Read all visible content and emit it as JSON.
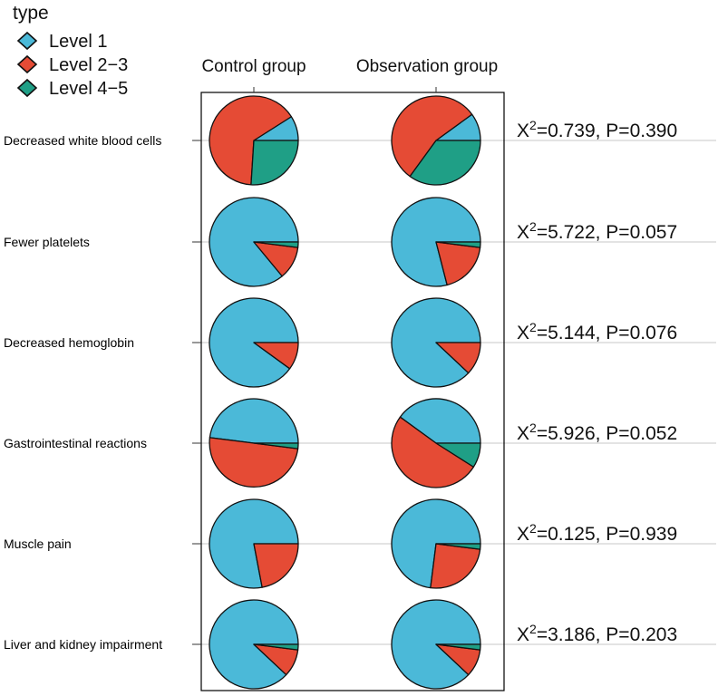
{
  "chart_data": {
    "type": "pie",
    "legend": {
      "title": "type",
      "position": "top-left",
      "items": [
        {
          "label": "Level 1",
          "color": "#4BB9D8"
        },
        {
          "label": "Level 2−3",
          "color": "#E54B35"
        },
        {
          "label": "Level 4−5",
          "color": "#1F9F86"
        }
      ]
    },
    "groups": [
      "Control group",
      "Observation group"
    ],
    "categories": [
      {
        "name": "Decreased white blood cells",
        "stat": {
          "chi_prefix": "X",
          "chi_sup": "2",
          "chi_value": "=0.739, P=0.390"
        },
        "values": {
          "Control group": [
            9,
            65,
            26
          ],
          "Observation group": [
            10,
            55,
            35
          ]
        }
      },
      {
        "name": "Fewer platelets",
        "stat": {
          "chi_prefix": "X",
          "chi_sup": "2",
          "chi_value": "=5.722, P=0.057"
        },
        "values": {
          "Control group": [
            86,
            12,
            2
          ],
          "Observation group": [
            79,
            19,
            2
          ]
        }
      },
      {
        "name": "Decreased hemoglobin",
        "stat": {
          "chi_prefix": "X",
          "chi_sup": "2",
          "chi_value": "=5.144, P=0.076"
        },
        "values": {
          "Control group": [
            90,
            10,
            0
          ],
          "Observation group": [
            88,
            12,
            0
          ]
        }
      },
      {
        "name": "Gastrointestinal reactions",
        "stat": {
          "chi_prefix": "X",
          "chi_sup": "2",
          "chi_value": "=5.926, P=0.052"
        },
        "values": {
          "Control group": [
            48,
            50,
            2
          ],
          "Observation group": [
            40,
            51,
            9
          ]
        }
      },
      {
        "name": "Muscle pain",
        "stat": {
          "chi_prefix": "X",
          "chi_sup": "2",
          "chi_value": "=0.125, P=0.939"
        },
        "values": {
          "Control group": [
            78,
            22,
            0
          ],
          "Observation group": [
            73,
            25,
            2
          ]
        }
      },
      {
        "name": "Liver and kidney impairment",
        "stat": {
          "chi_prefix": "X",
          "chi_sup": "2",
          "chi_value": "=3.186, P=0.203"
        },
        "values": {
          "Control group": [
            88,
            10,
            2
          ],
          "Observation group": [
            88,
            10,
            2
          ]
        }
      }
    ]
  }
}
